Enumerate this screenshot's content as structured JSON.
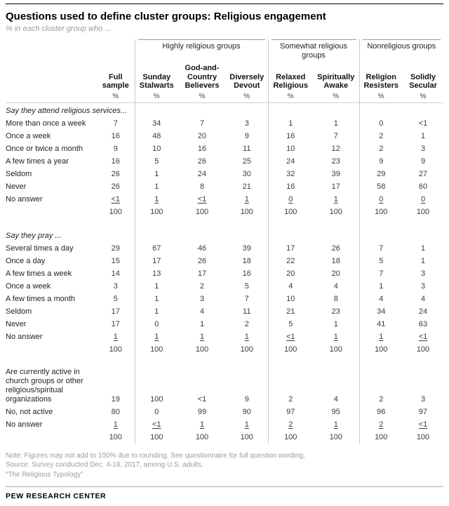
{
  "header": {
    "title": "Questions used to define cluster groups: Religious engagement",
    "subtitle": "% in each cluster group who ..."
  },
  "colors": {
    "text": "#222222",
    "muted_gray": "#9b9b9b",
    "rule_gray": "#c9c9c9",
    "rule_black": "#000000"
  },
  "chart_data": {
    "type": "table",
    "title": "Questions used to define cluster groups: Religious engagement",
    "unit": "%",
    "column_groups": [
      {
        "label": "Highly religious groups",
        "span": 3
      },
      {
        "label": "Somewhat religious groups",
        "span": 2
      },
      {
        "label": "Nonreligious groups",
        "span": 2
      }
    ],
    "columns": [
      "Full sample",
      "Sunday Stalwarts",
      "God-and-Country Believers",
      "Diversely Devout",
      "Relaxed Religious",
      "Spiritually Awake",
      "Religion Resisters",
      "Solidly Secular"
    ],
    "sections": [
      {
        "header": "Say they attend religious services...",
        "rows": [
          {
            "label": "More than once a week",
            "values": [
              "7",
              "34",
              "7",
              "3",
              "1",
              "1",
              "0",
              "<1"
            ]
          },
          {
            "label": "Once a week",
            "values": [
              "16",
              "48",
              "20",
              "9",
              "16",
              "7",
              "2",
              "1"
            ]
          },
          {
            "label": "Once or twice a month",
            "values": [
              "9",
              "10",
              "16",
              "11",
              "10",
              "12",
              "2",
              "3"
            ]
          },
          {
            "label": "A few times a year",
            "values": [
              "16",
              "5",
              "26",
              "25",
              "24",
              "23",
              "9",
              "9"
            ]
          },
          {
            "label": "Seldom",
            "values": [
              "26",
              "1",
              "24",
              "30",
              "32",
              "39",
              "29",
              "27"
            ]
          },
          {
            "label": "Never",
            "values": [
              "26",
              "1",
              "8",
              "21",
              "16",
              "17",
              "58",
              "60"
            ]
          },
          {
            "label": "No answer",
            "values": [
              "<1",
              "1",
              "<1",
              "1",
              "0",
              "1",
              "0",
              "0"
            ],
            "underline": true
          },
          {
            "label": "",
            "values": [
              "100",
              "100",
              "100",
              "100",
              "100",
              "100",
              "100",
              "100"
            ],
            "total": true
          }
        ]
      },
      {
        "header": "Say they pray ...",
        "rows": [
          {
            "label": "Several times a day",
            "values": [
              "29",
              "67",
              "46",
              "39",
              "17",
              "26",
              "7",
              "1"
            ]
          },
          {
            "label": "Once a day",
            "values": [
              "15",
              "17",
              "26",
              "18",
              "22",
              "18",
              "5",
              "1"
            ]
          },
          {
            "label": "A few times a week",
            "values": [
              "14",
              "13",
              "17",
              "16",
              "20",
              "20",
              "7",
              "3"
            ]
          },
          {
            "label": "Once a week",
            "values": [
              "3",
              "1",
              "2",
              "5",
              "4",
              "4",
              "1",
              "3"
            ]
          },
          {
            "label": "A few times a month",
            "values": [
              "5",
              "1",
              "3",
              "7",
              "10",
              "8",
              "4",
              "4"
            ]
          },
          {
            "label": "Seldom",
            "values": [
              "17",
              "1",
              "4",
              "11",
              "21",
              "23",
              "34",
              "24"
            ]
          },
          {
            "label": "Never",
            "values": [
              "17",
              "0",
              "1",
              "2",
              "5",
              "1",
              "41",
              "63"
            ]
          },
          {
            "label": "No answer",
            "values": [
              "1",
              "1",
              "1",
              "1",
              "<1",
              "1",
              "1",
              "<1"
            ],
            "underline": true
          },
          {
            "label": "",
            "values": [
              "100",
              "100",
              "100",
              "100",
              "100",
              "100",
              "100",
              "100"
            ],
            "total": true
          }
        ]
      },
      {
        "header": "",
        "rows": [
          {
            "label": "Are currently active in church groups or other religious/spiritual organizations",
            "values": [
              "19",
              "100",
              "<1",
              "9",
              "2",
              "4",
              "2",
              "3"
            ],
            "multiline": true
          },
          {
            "label": "No, not active",
            "values": [
              "80",
              "0",
              "99",
              "90",
              "97",
              "95",
              "96",
              "97"
            ]
          },
          {
            "label": "No answer",
            "values": [
              "1",
              "<1",
              "1",
              "1",
              "2",
              "1",
              "2",
              "<1"
            ],
            "underline": true
          },
          {
            "label": "",
            "values": [
              "100",
              "100",
              "100",
              "100",
              "100",
              "100",
              "100",
              "100"
            ],
            "total": true
          }
        ]
      }
    ]
  },
  "footer": {
    "note": "Note: Figures may not add to 100% due to rounding. See questionnaire for full question wording.",
    "source": "Source: Survey conducted Dec. 4-18, 2017, among U.S. adults.",
    "report": "“The Religious Typology”",
    "brand": "PEW RESEARCH CENTER"
  }
}
